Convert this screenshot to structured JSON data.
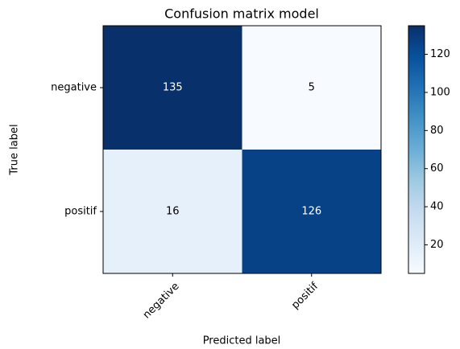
{
  "chart_data": {
    "type": "heatmap",
    "title": "Confusion matrix model",
    "xlabel": "Predicted label",
    "ylabel": "True label",
    "x_categories": [
      "negative",
      "positif"
    ],
    "y_categories": [
      "negative",
      "positif"
    ],
    "values": [
      [
        135,
        5
      ],
      [
        16,
        126
      ]
    ],
    "colormap": "Blues",
    "clim": [
      5,
      135
    ],
    "cticks": [
      20,
      40,
      60,
      80,
      100,
      120
    ]
  }
}
